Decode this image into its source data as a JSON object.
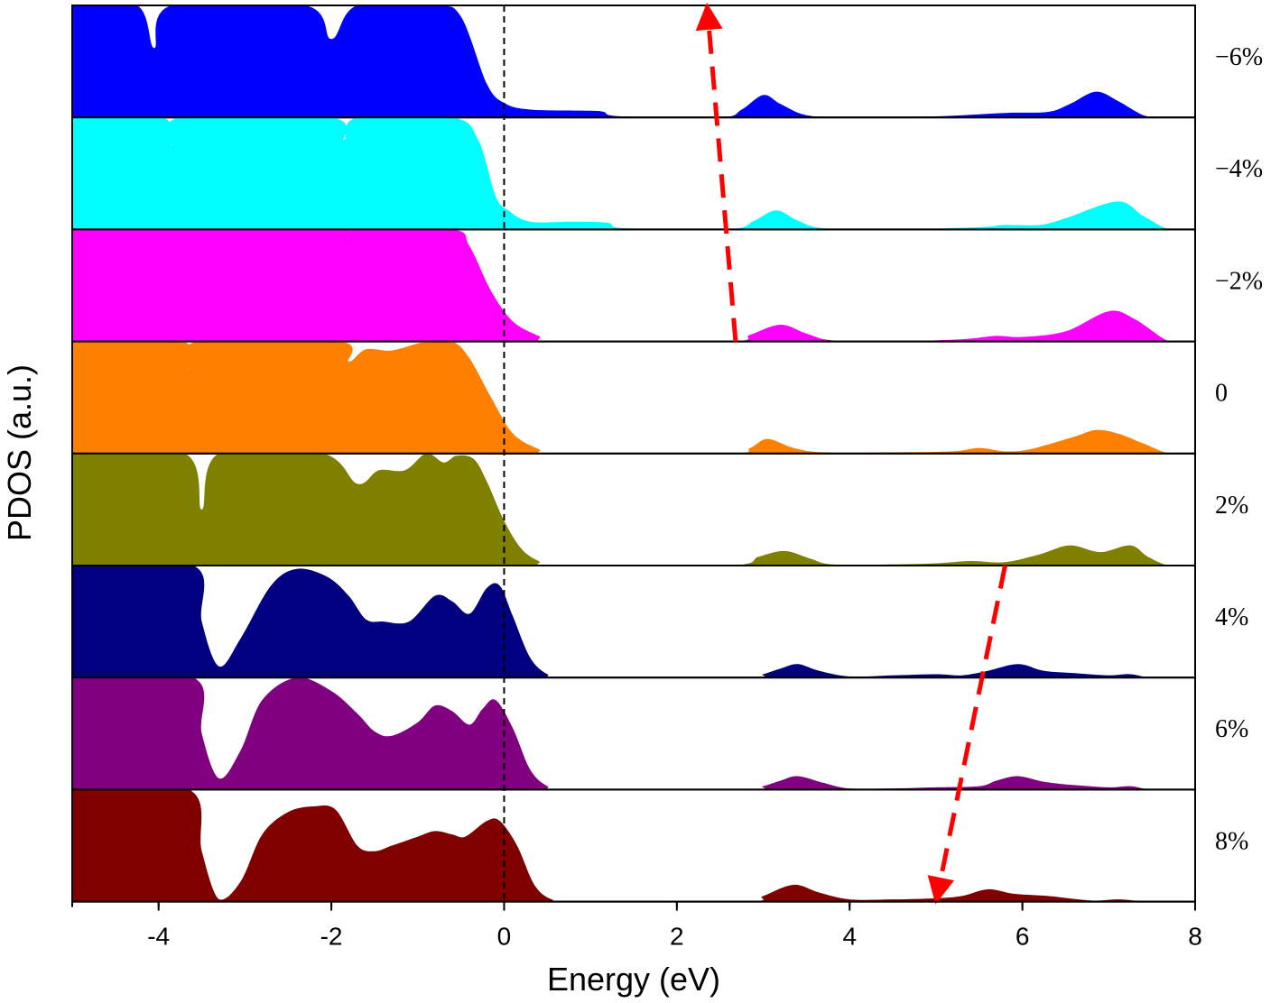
{
  "chart_data": {
    "type": "area",
    "title": "",
    "xlabel": "Energy (eV)",
    "ylabel": "PDOS (a.u.)",
    "xlim": [
      -5,
      8
    ],
    "xticks": [
      -4,
      -2,
      0,
      2,
      4,
      6,
      8
    ],
    "xtick_labels": [
      "-4",
      "-2",
      "0",
      "2",
      "4",
      "6",
      "8"
    ],
    "fermi_level": 0,
    "panel_ymax": 1.0,
    "series": [
      {
        "name": "−6%",
        "color": "#0000ff",
        "points": [
          [
            -5,
            1.5
          ],
          [
            -4.25,
            1.5
          ],
          [
            -4.05,
            0.62
          ],
          [
            -3.85,
            1.5
          ],
          [
            -2.3,
            1.5
          ],
          [
            -2.0,
            0.7
          ],
          [
            -1.7,
            1.5
          ],
          [
            -0.8,
            1.5
          ],
          [
            -0.5,
            0.9
          ],
          [
            -0.2,
            0.3
          ],
          [
            0,
            0.13
          ],
          [
            0.3,
            0.07
          ],
          [
            1.0,
            0.06
          ],
          [
            1.15,
            0.05
          ],
          [
            1.35,
            0.01
          ],
          [
            2.5,
            0.0
          ],
          [
            2.75,
            0.07
          ],
          [
            3.0,
            0.2
          ],
          [
            3.2,
            0.12
          ],
          [
            3.5,
            0.02
          ],
          [
            4.0,
            0.0
          ],
          [
            5.0,
            0.01
          ],
          [
            5.8,
            0.04
          ],
          [
            6.3,
            0.05
          ],
          [
            6.55,
            0.12
          ],
          [
            6.85,
            0.23
          ],
          [
            7.1,
            0.15
          ],
          [
            7.4,
            0.02
          ],
          [
            7.6,
            0.0
          ],
          [
            8,
            0.0
          ]
        ]
      },
      {
        "name": "−4%",
        "color": "#00ffff",
        "points": [
          [
            -5,
            1.5
          ],
          [
            -3.95,
            1.5
          ],
          [
            -3.85,
            0.75
          ],
          [
            -3.75,
            1.5
          ],
          [
            -2.0,
            1.5
          ],
          [
            -1.85,
            0.8
          ],
          [
            -1.7,
            1.5
          ],
          [
            -0.6,
            1.5
          ],
          [
            -0.3,
            0.8
          ],
          [
            -0.1,
            0.3
          ],
          [
            0.05,
            0.17
          ],
          [
            0.3,
            0.07
          ],
          [
            0.8,
            0.07
          ],
          [
            1.2,
            0.06
          ],
          [
            1.4,
            0.01
          ],
          [
            2.6,
            0.0
          ],
          [
            2.9,
            0.08
          ],
          [
            3.15,
            0.17
          ],
          [
            3.4,
            0.08
          ],
          [
            3.7,
            0.01
          ],
          [
            4.5,
            0.0
          ],
          [
            5.5,
            0.02
          ],
          [
            5.8,
            0.04
          ],
          [
            6.2,
            0.04
          ],
          [
            6.5,
            0.1
          ],
          [
            7.1,
            0.25
          ],
          [
            7.4,
            0.12
          ],
          [
            7.7,
            0.0
          ],
          [
            8,
            0.0
          ]
        ]
      },
      {
        "name": "−2%",
        "color": "#ff00ff",
        "points": [
          [
            -5,
            1.5
          ],
          [
            -3.8,
            1.5
          ],
          [
            -3.75,
            0.85
          ],
          [
            -3.7,
            1.5
          ],
          [
            -1.9,
            1.5
          ],
          [
            -1.8,
            0.92
          ],
          [
            -1.7,
            1.5
          ],
          [
            -0.6,
            1.5
          ],
          [
            -0.4,
            0.85
          ],
          [
            -0.15,
            0.45
          ],
          [
            0.1,
            0.18
          ],
          [
            0.4,
            0.05
          ],
          [
            0.6,
            0.0
          ],
          [
            2.6,
            0.0
          ],
          [
            2.85,
            0.06
          ],
          [
            3.2,
            0.15
          ],
          [
            3.5,
            0.07
          ],
          [
            3.8,
            0.01
          ],
          [
            4.5,
            0.0
          ],
          [
            5.3,
            0.02
          ],
          [
            5.7,
            0.05
          ],
          [
            6.0,
            0.04
          ],
          [
            6.5,
            0.09
          ],
          [
            7.0,
            0.27
          ],
          [
            7.3,
            0.2
          ],
          [
            7.7,
            0.0
          ],
          [
            8,
            0.0
          ]
        ]
      },
      {
        "name": "0",
        "color": "#ff8000",
        "points": [
          [
            -5,
            1.5
          ],
          [
            -3.72,
            1.5
          ],
          [
            -3.65,
            0.75
          ],
          [
            -3.55,
            1.5
          ],
          [
            -1.9,
            1.5
          ],
          [
            -1.8,
            0.82
          ],
          [
            -1.6,
            0.93
          ],
          [
            -1.3,
            0.92
          ],
          [
            -0.9,
            1.5
          ],
          [
            -0.6,
            1.5
          ],
          [
            -0.4,
            0.85
          ],
          [
            -0.15,
            0.5
          ],
          [
            0.1,
            0.18
          ],
          [
            0.4,
            0.04
          ],
          [
            0.6,
            0.0
          ],
          [
            2.6,
            0.0
          ],
          [
            2.85,
            0.05
          ],
          [
            3.05,
            0.13
          ],
          [
            3.35,
            0.05
          ],
          [
            3.7,
            0.01
          ],
          [
            4.5,
            0.01
          ],
          [
            5.2,
            0.02
          ],
          [
            5.5,
            0.05
          ],
          [
            5.8,
            0.02
          ],
          [
            6.1,
            0.04
          ],
          [
            6.6,
            0.15
          ],
          [
            6.85,
            0.21
          ],
          [
            7.1,
            0.18
          ],
          [
            7.4,
            0.09
          ],
          [
            7.7,
            0.0
          ],
          [
            8,
            0.0
          ]
        ]
      },
      {
        "name": "2%",
        "color": "#808000",
        "points": [
          [
            -5,
            1.5
          ],
          [
            -3.7,
            1.5
          ],
          [
            -3.5,
            0.5
          ],
          [
            -3.3,
            1.5
          ],
          [
            -2.1,
            1.5
          ],
          [
            -1.7,
            0.73
          ],
          [
            -1.45,
            0.85
          ],
          [
            -1.15,
            0.85
          ],
          [
            -0.9,
            1.0
          ],
          [
            -0.7,
            0.92
          ],
          [
            -0.55,
            0.98
          ],
          [
            -0.35,
            0.95
          ],
          [
            -0.2,
            0.75
          ],
          [
            0.0,
            0.4
          ],
          [
            0.2,
            0.15
          ],
          [
            0.4,
            0.04
          ],
          [
            0.6,
            0.0
          ],
          [
            2.6,
            0.0
          ],
          [
            2.95,
            0.08
          ],
          [
            3.25,
            0.13
          ],
          [
            3.55,
            0.06
          ],
          [
            3.8,
            0.01
          ],
          [
            4.5,
            0.01
          ],
          [
            5.0,
            0.02
          ],
          [
            5.4,
            0.04
          ],
          [
            5.8,
            0.03
          ],
          [
            6.2,
            0.1
          ],
          [
            6.55,
            0.18
          ],
          [
            6.9,
            0.12
          ],
          [
            7.25,
            0.18
          ],
          [
            7.45,
            0.08
          ],
          [
            7.7,
            0.0
          ],
          [
            8,
            0.0
          ]
        ]
      },
      {
        "name": "4%",
        "color": "#000080",
        "points": [
          [
            -5,
            1.5
          ],
          [
            -3.6,
            1.5
          ],
          [
            -3.5,
            0.5
          ],
          [
            -3.3,
            0.1
          ],
          [
            -3.05,
            0.35
          ],
          [
            -2.7,
            0.82
          ],
          [
            -2.4,
            0.97
          ],
          [
            -2.05,
            0.9
          ],
          [
            -1.8,
            0.73
          ],
          [
            -1.6,
            0.52
          ],
          [
            -1.4,
            0.5
          ],
          [
            -1.1,
            0.5
          ],
          [
            -0.8,
            0.73
          ],
          [
            -0.6,
            0.68
          ],
          [
            -0.4,
            0.57
          ],
          [
            -0.2,
            0.8
          ],
          [
            -0.05,
            0.82
          ],
          [
            0.1,
            0.55
          ],
          [
            0.3,
            0.18
          ],
          [
            0.5,
            0.03
          ],
          [
            0.7,
            0.0
          ],
          [
            2.8,
            0.0
          ],
          [
            3.0,
            0.03
          ],
          [
            3.2,
            0.08
          ],
          [
            3.4,
            0.12
          ],
          [
            3.65,
            0.06
          ],
          [
            4.0,
            0.01
          ],
          [
            4.5,
            0.02
          ],
          [
            5.0,
            0.03
          ],
          [
            5.3,
            0.02
          ],
          [
            5.6,
            0.06
          ],
          [
            5.95,
            0.12
          ],
          [
            6.25,
            0.06
          ],
          [
            6.6,
            0.04
          ],
          [
            7.0,
            0.02
          ],
          [
            7.25,
            0.03
          ],
          [
            7.5,
            0.0
          ],
          [
            8,
            0.0
          ]
        ]
      },
      {
        "name": "6%",
        "color": "#800080",
        "points": [
          [
            -5,
            1.5
          ],
          [
            -3.6,
            1.5
          ],
          [
            -3.5,
            0.5
          ],
          [
            -3.3,
            0.1
          ],
          [
            -3.05,
            0.35
          ],
          [
            -2.8,
            0.8
          ],
          [
            -2.4,
            1.0
          ],
          [
            -2.0,
            0.88
          ],
          [
            -1.7,
            0.68
          ],
          [
            -1.5,
            0.52
          ],
          [
            -1.3,
            0.48
          ],
          [
            -1.0,
            0.6
          ],
          [
            -0.8,
            0.75
          ],
          [
            -0.6,
            0.7
          ],
          [
            -0.4,
            0.58
          ],
          [
            -0.25,
            0.72
          ],
          [
            -0.1,
            0.8
          ],
          [
            0.1,
            0.55
          ],
          [
            0.3,
            0.18
          ],
          [
            0.5,
            0.03
          ],
          [
            0.7,
            0.0
          ],
          [
            2.8,
            0.0
          ],
          [
            3.0,
            0.03
          ],
          [
            3.2,
            0.08
          ],
          [
            3.4,
            0.12
          ],
          [
            3.7,
            0.06
          ],
          [
            4.0,
            0.01
          ],
          [
            4.5,
            0.01
          ],
          [
            5.0,
            0.02
          ],
          [
            5.5,
            0.03
          ],
          [
            5.7,
            0.08
          ],
          [
            5.95,
            0.12
          ],
          [
            6.25,
            0.07
          ],
          [
            6.6,
            0.04
          ],
          [
            7.0,
            0.02
          ],
          [
            7.25,
            0.03
          ],
          [
            7.5,
            0.0
          ],
          [
            8,
            0.0
          ]
        ]
      },
      {
        "name": "8%",
        "color": "#800000",
        "points": [
          [
            -5,
            1.5
          ],
          [
            -3.65,
            1.5
          ],
          [
            -3.5,
            0.45
          ],
          [
            -3.3,
            0.02
          ],
          [
            -3.05,
            0.18
          ],
          [
            -2.8,
            0.6
          ],
          [
            -2.5,
            0.8
          ],
          [
            -2.2,
            0.85
          ],
          [
            -1.95,
            0.82
          ],
          [
            -1.7,
            0.5
          ],
          [
            -1.5,
            0.45
          ],
          [
            -1.3,
            0.5
          ],
          [
            -1.0,
            0.58
          ],
          [
            -0.8,
            0.63
          ],
          [
            -0.6,
            0.6
          ],
          [
            -0.45,
            0.58
          ],
          [
            -0.2,
            0.72
          ],
          [
            -0.05,
            0.72
          ],
          [
            0.15,
            0.5
          ],
          [
            0.35,
            0.15
          ],
          [
            0.55,
            0.02
          ],
          [
            0.8,
            0.0
          ],
          [
            2.8,
            0.0
          ],
          [
            3.0,
            0.05
          ],
          [
            3.35,
            0.15
          ],
          [
            3.65,
            0.08
          ],
          [
            4.0,
            0.02
          ],
          [
            4.5,
            0.02
          ],
          [
            5.0,
            0.03
          ],
          [
            5.3,
            0.05
          ],
          [
            5.6,
            0.11
          ],
          [
            5.9,
            0.07
          ],
          [
            6.3,
            0.05
          ],
          [
            6.8,
            0.01
          ],
          [
            7.1,
            0.02
          ],
          [
            7.3,
            0.01
          ],
          [
            7.5,
            0.0
          ],
          [
            8,
            0.0
          ]
        ]
      }
    ],
    "arrows": [
      {
        "name": "band-shift-up",
        "color": "#ff0000",
        "from": {
          "energy": 2.68,
          "panel": 2,
          "level": 0
        },
        "to": {
          "energy": 2.35,
          "panel": 0,
          "level": 1.0
        }
      },
      {
        "name": "band-shift-down",
        "color": "#ff0000",
        "from": {
          "energy": 5.8,
          "panel": 5,
          "level": 1.0
        },
        "to": {
          "energy": 5.0,
          "panel": 7,
          "level": 0
        }
      }
    ]
  }
}
